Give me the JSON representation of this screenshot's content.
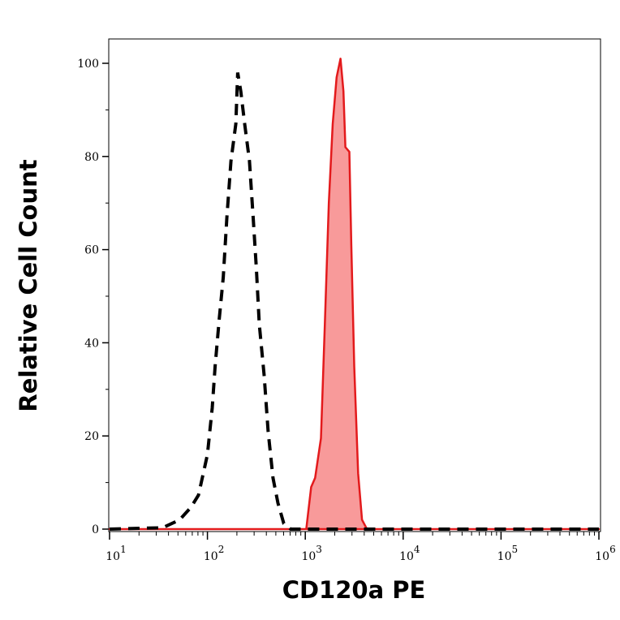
{
  "chart_data": {
    "type": "area",
    "title": "",
    "xlabel": "CD120a PE",
    "ylabel": "Relative Cell Count",
    "xscale": "log",
    "xlim": [
      10,
      1000000
    ],
    "ylim": [
      0,
      105
    ],
    "grid": false,
    "x_tick_labels": [
      {
        "base": "10",
        "exp": "1",
        "value": 10
      },
      {
        "base": "10",
        "exp": "2",
        "value": 100
      },
      {
        "base": "10",
        "exp": "3",
        "value": 1000
      },
      {
        "base": "10",
        "exp": "4",
        "value": 10000
      },
      {
        "base": "10",
        "exp": "5",
        "value": 100000
      },
      {
        "base": "10",
        "exp": "6",
        "value": 1000000
      }
    ],
    "y_ticks": [
      0,
      20,
      40,
      60,
      80,
      100
    ],
    "y_tick_labels": [
      "0",
      "20",
      "40",
      "60",
      "80",
      "100"
    ],
    "series": [
      {
        "style": "dashed-outline",
        "color": "#000000",
        "x": [
          10,
          35,
          52,
          68,
          81,
          100,
          112,
          120,
          132,
          145,
          158,
          174,
          195,
          204,
          219,
          240,
          269,
          295,
          316,
          339,
          380,
          417,
          468,
          525,
          603,
          708,
          1000000
        ],
        "y": [
          0,
          0.3,
          2,
          4.7,
          7.3,
          16,
          26,
          35,
          45,
          54,
          67,
          79,
          87,
          98,
          94,
          87,
          79,
          66,
          56,
          44,
          33,
          21,
          11,
          5.6,
          1.2,
          0,
          0
        ]
      },
      {
        "style": "filled",
        "color": "#e31a1c",
        "fill": "#f89a9a",
        "x": [
          10,
          1023,
          1148,
          1259,
          1445,
          1585,
          1738,
          1905,
          2089,
          2291,
          2455,
          2570,
          2818,
          2951,
          3162,
          3467,
          3802,
          4266,
          1000000
        ],
        "y": [
          0,
          0,
          9,
          11,
          19.5,
          44,
          70,
          87,
          97,
          101,
          94,
          82,
          81,
          61,
          35,
          12,
          2,
          0,
          0
        ]
      }
    ]
  }
}
